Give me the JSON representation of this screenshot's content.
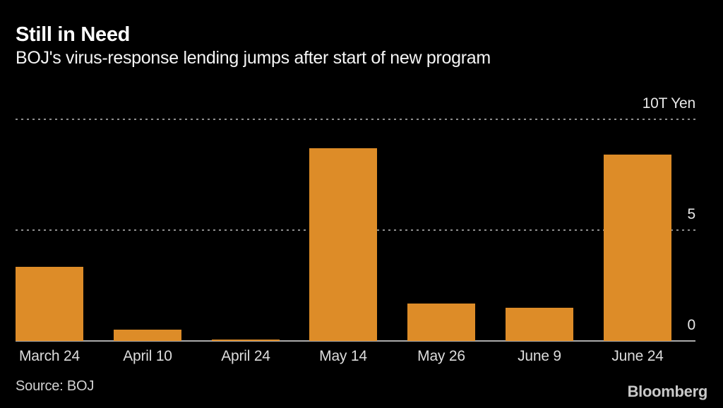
{
  "header": {
    "title": "Still in Need",
    "subtitle": "BOJ's virus-response lending jumps after start of new program"
  },
  "chart_data": {
    "type": "bar",
    "categories": [
      "March 24",
      "April 10",
      "April 24",
      "May 14",
      "May 26",
      "June 9",
      "June 24"
    ],
    "values": [
      3.35,
      0.5,
      0.07,
      8.7,
      1.7,
      1.5,
      8.4
    ],
    "title": "Still in Need",
    "subtitle": "BOJ's virus-response lending jumps after start of new program",
    "xlabel": "",
    "ylabel": "10T Yen",
    "ylim": [
      0,
      10
    ],
    "yticks": [
      0,
      5,
      10
    ],
    "ytick_labels": [
      "0",
      "5",
      "10T Yen"
    ],
    "grid": "horizontal-dotted",
    "legend": "none",
    "bar_color": "#dd8c28",
    "background_color": "#000000"
  },
  "footer": {
    "source": "Source: BOJ",
    "brand": "Bloomberg"
  }
}
